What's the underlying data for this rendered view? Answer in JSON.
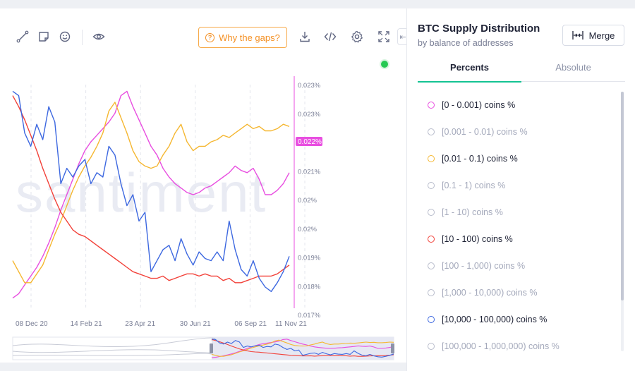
{
  "toolbar": {
    "gaps_label": "Why the gaps?",
    "icons": [
      "line-draw-icon",
      "note-icon",
      "emoji-icon",
      "eye-icon",
      "download-icon",
      "embed-code-icon",
      "settings-icon",
      "fullscreen-icon"
    ]
  },
  "panel": {
    "title": "BTC Supply Distribution",
    "subtitle": "by balance of addresses",
    "merge_label": "Merge",
    "tabs": [
      "Percents",
      "Absolute"
    ],
    "active_tab": "Percents"
  },
  "metrics": [
    {
      "label": "[0 - 0.001) coins %",
      "active": true,
      "color": "#e84ee0"
    },
    {
      "label": "[0.001 - 0.01) coins %",
      "active": false,
      "color": "#b8bccb"
    },
    {
      "label": "[0.01 - 0.1) coins %",
      "active": true,
      "color": "#f5b731"
    },
    {
      "label": "[0.1 - 1) coins %",
      "active": false,
      "color": "#b8bccb"
    },
    {
      "label": "[1 - 10) coins %",
      "active": false,
      "color": "#b8bccb"
    },
    {
      "label": "[10 - 100) coins %",
      "active": true,
      "color": "#f2423a"
    },
    {
      "label": "[100 - 1,000) coins %",
      "active": false,
      "color": "#b8bccb"
    },
    {
      "label": "[1,000 - 10,000) coins %",
      "active": false,
      "color": "#b8bccb"
    },
    {
      "label": "[10,000 - 100,000) coins %",
      "active": true,
      "color": "#3d68e0"
    },
    {
      "label": "[100,000 - 1,000,000) coins %",
      "active": false,
      "color": "#b8bccb"
    }
  ],
  "chart_data": {
    "type": "line",
    "watermark": "santiment",
    "x_tick_labels": [
      "08 Dec 20",
      "14 Feb 21",
      "23 Apr 21",
      "30 Jun 21",
      "06 Sep 21",
      "11 Nov 21"
    ],
    "y_tick_labels": [
      "0.023%",
      "0.023%",
      "0.022%",
      "0.021%",
      "0.02%",
      "0.02%",
      "0.019%",
      "0.018%",
      "0.017%"
    ],
    "current_value_label": "0.022%",
    "x_range": [
      "2020-12-01",
      "2021-11-15"
    ],
    "y_range_normalized": [
      0,
      1
    ],
    "grid": "vertical dashed",
    "series": [
      {
        "name": "[0 - 0.001) coins %",
        "color": "#e84ee0",
        "values": [
          0.03,
          0.05,
          0.09,
          0.13,
          0.17,
          0.22,
          0.28,
          0.35,
          0.43,
          0.5,
          0.57,
          0.64,
          0.7,
          0.74,
          0.77,
          0.8,
          0.83,
          0.87,
          0.95,
          0.97,
          0.9,
          0.84,
          0.78,
          0.72,
          0.68,
          0.62,
          0.58,
          0.55,
          0.53,
          0.51,
          0.5,
          0.51,
          0.53,
          0.54,
          0.56,
          0.58,
          0.6,
          0.63,
          0.61,
          0.6,
          0.62,
          0.57,
          0.5,
          0.5,
          0.52,
          0.55,
          0.6
        ],
        "y_scale": "normalized"
      },
      {
        "name": "[0.01 - 0.1) coins %",
        "color": "#f5b731",
        "values": [
          0.2,
          0.15,
          0.1,
          0.1,
          0.14,
          0.18,
          0.25,
          0.32,
          0.38,
          0.45,
          0.52,
          0.58,
          0.63,
          0.67,
          0.72,
          0.78,
          0.88,
          0.92,
          0.85,
          0.78,
          0.7,
          0.65,
          0.63,
          0.62,
          0.63,
          0.68,
          0.72,
          0.78,
          0.82,
          0.74,
          0.7,
          0.72,
          0.72,
          0.74,
          0.75,
          0.77,
          0.76,
          0.78,
          0.8,
          0.82,
          0.8,
          0.81,
          0.79,
          0.79,
          0.8,
          0.82,
          0.81
        ],
        "y_scale": "normalized"
      },
      {
        "name": "[10 - 100) coins %",
        "color": "#f2423a",
        "values": [
          0.95,
          0.9,
          0.84,
          0.77,
          0.7,
          0.62,
          0.55,
          0.48,
          0.42,
          0.38,
          0.34,
          0.32,
          0.31,
          0.29,
          0.27,
          0.25,
          0.23,
          0.21,
          0.19,
          0.17,
          0.15,
          0.14,
          0.13,
          0.12,
          0.12,
          0.13,
          0.11,
          0.12,
          0.13,
          0.14,
          0.14,
          0.13,
          0.14,
          0.13,
          0.13,
          0.11,
          0.12,
          0.1,
          0.1,
          0.11,
          0.12,
          0.13,
          0.13,
          0.13,
          0.14,
          0.16,
          0.18
        ],
        "y_scale": "normalized"
      },
      {
        "name": "[10,000 - 100,000) coins %",
        "color": "#3d68e0",
        "values": [
          0.97,
          0.95,
          0.78,
          0.72,
          0.82,
          0.75,
          0.9,
          0.83,
          0.55,
          0.62,
          0.58,
          0.63,
          0.66,
          0.55,
          0.6,
          0.58,
          0.72,
          0.68,
          0.55,
          0.45,
          0.5,
          0.38,
          0.42,
          0.15,
          0.2,
          0.25,
          0.27,
          0.2,
          0.3,
          0.23,
          0.18,
          0.24,
          0.21,
          0.2,
          0.24,
          0.2,
          0.38,
          0.25,
          0.16,
          0.13,
          0.2,
          0.12,
          0.08,
          0.06,
          0.1,
          0.15,
          0.22
        ],
        "y_scale": "normalized"
      }
    ]
  }
}
